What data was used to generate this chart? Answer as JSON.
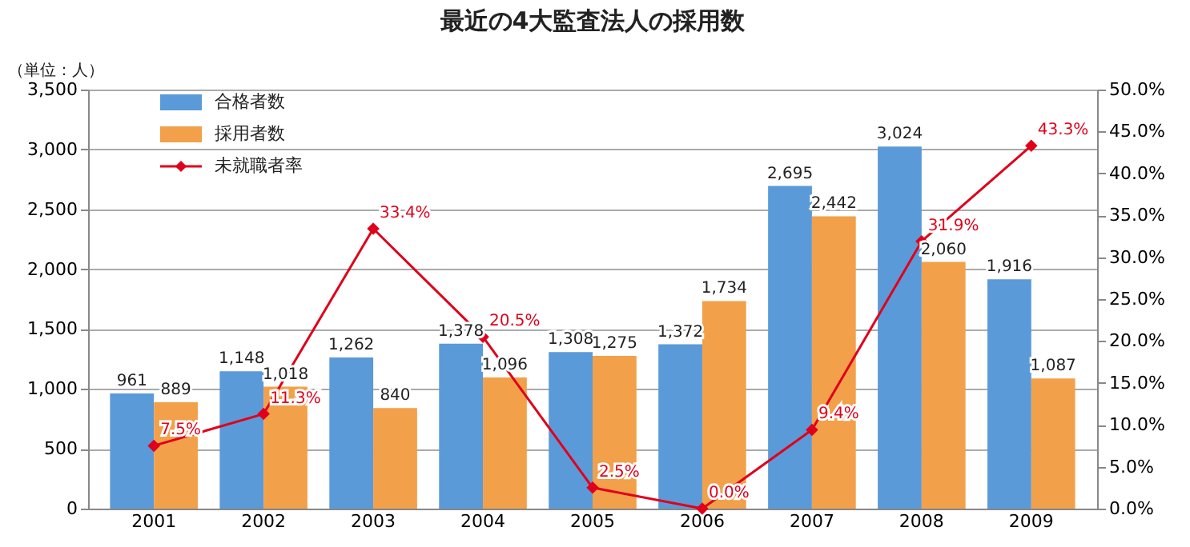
{
  "chart_data": {
    "type": "bar",
    "title": "最近の4大監査法人の採用数",
    "annotations": [
      "（単位：人）"
    ],
    "categories": [
      "2001",
      "2002",
      "2003",
      "2004",
      "2005",
      "2006",
      "2007",
      "2008",
      "2009"
    ],
    "series": [
      {
        "name": "合格者数",
        "type": "bar",
        "color": "#5b9ad8",
        "values": [
          961,
          1148,
          1262,
          1378,
          1308,
          1372,
          2695,
          3024,
          1916
        ],
        "value_labels": [
          "961",
          "1,148",
          "1,262",
          "1,378",
          "1,308",
          "1,372",
          "2,695",
          "3,024",
          "1,916"
        ]
      },
      {
        "name": "採用者数",
        "type": "bar",
        "color": "#f2a04a",
        "values": [
          889,
          1018,
          840,
          1096,
          1275,
          1734,
          2442,
          2060,
          1087
        ],
        "value_labels": [
          "889",
          "1,018",
          "840",
          "1,096",
          "1,275",
          "1,734",
          "2,442",
          "2,060",
          "1,087"
        ]
      },
      {
        "name": "未就職者率",
        "type": "line",
        "axis": "y2",
        "color": "#e0001b",
        "marker": "diamond",
        "values": [
          7.5,
          11.3,
          33.4,
          20.5,
          2.5,
          0.0,
          9.4,
          31.9,
          43.3
        ],
        "value_labels": [
          "7.5%",
          "11.3%",
          "33.4%",
          "20.5%",
          "2.5%",
          "0.0%",
          "9.4%",
          "31.9%",
          "43.3%"
        ]
      }
    ],
    "ylim": [
      0,
      3500
    ],
    "yticks": [
      0,
      500,
      {
        "value": 1000,
        "label": "1,000"
      },
      {
        "value": 1500,
        "label": "1,500"
      },
      {
        "value": 2000,
        "label": "2,000"
      },
      {
        "value": 2500,
        "label": "2,500"
      },
      {
        "value": 3000,
        "label": "3,000"
      },
      {
        "value": 3500,
        "label": "3,500"
      }
    ],
    "y2lim": [
      0,
      50
    ],
    "y2ticks": [
      {
        "value": 0,
        "label": "0.0%"
      },
      {
        "value": 5,
        "label": "5.0%"
      },
      {
        "value": 10,
        "label": "10.0%"
      },
      {
        "value": 15,
        "label": "15.0%"
      },
      {
        "value": 20,
        "label": "20.0%"
      },
      {
        "value": 25,
        "label": "25.0%"
      },
      {
        "value": 30,
        "label": "30.0%"
      },
      {
        "value": 35,
        "label": "35.0%"
      },
      {
        "value": 40,
        "label": "40.0%"
      },
      {
        "value": 45,
        "label": "45.0%"
      },
      {
        "value": 50,
        "label": "50.0%"
      }
    ],
    "grid": "y",
    "legend": "top left"
  }
}
